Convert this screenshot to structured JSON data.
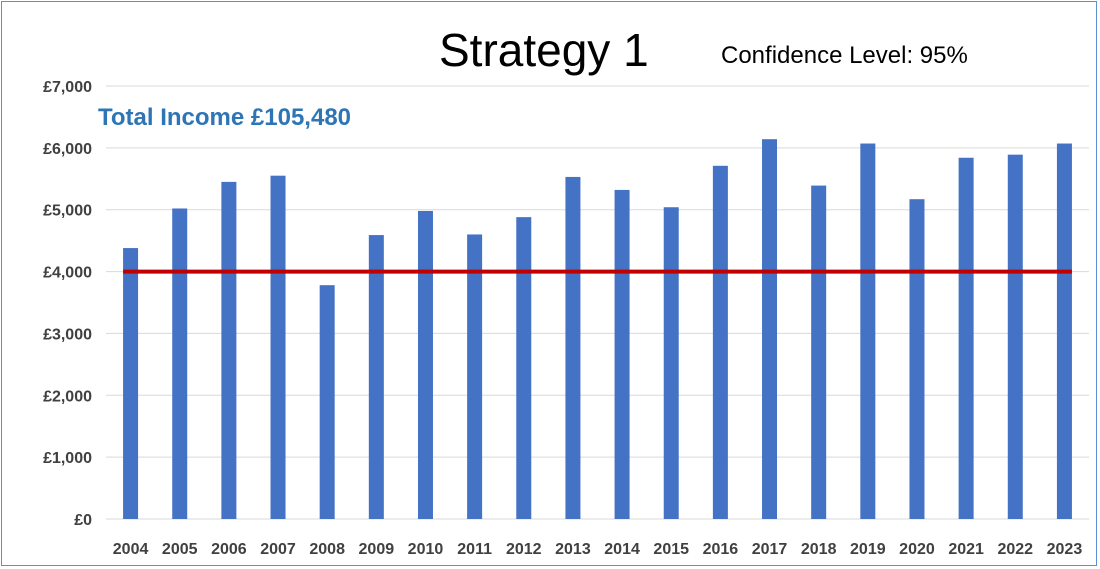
{
  "chart_data": {
    "type": "bar",
    "title": "Strategy 1",
    "subtitle": "Confidence Level: 95%",
    "annotation": "Total Income £105,480",
    "categories": [
      "2004",
      "2005",
      "2006",
      "2007",
      "2008",
      "2009",
      "2010",
      "2011",
      "2012",
      "2013",
      "2014",
      "2015",
      "2016",
      "2017",
      "2018",
      "2019",
      "2020",
      "2021",
      "2022",
      "2023"
    ],
    "series": [
      {
        "values": [
          4380,
          5020,
          5450,
          5550,
          3780,
          4590,
          4980,
          4600,
          4880,
          5530,
          5320,
          5040,
          5710,
          6140,
          5390,
          6070,
          5170,
          5840,
          5890,
          6070
        ],
        "color": "#4472c4"
      }
    ],
    "reference_line": {
      "value": 4000,
      "color": "#c00000"
    },
    "ylim": [
      0,
      7000
    ],
    "yticks": [
      0,
      1000,
      2000,
      3000,
      4000,
      5000,
      6000,
      7000
    ],
    "ytick_labels": [
      "£0",
      "£1,000",
      "£2,000",
      "£3,000",
      "£4,000",
      "£5,000",
      "£6,000",
      "£7,000"
    ],
    "xlabel": "",
    "ylabel": "",
    "grid": true,
    "legend": "none",
    "colors": {
      "gridline": "#d9d9d9",
      "frame": "#5b8fd6",
      "annotation": "#2e75b6"
    }
  }
}
